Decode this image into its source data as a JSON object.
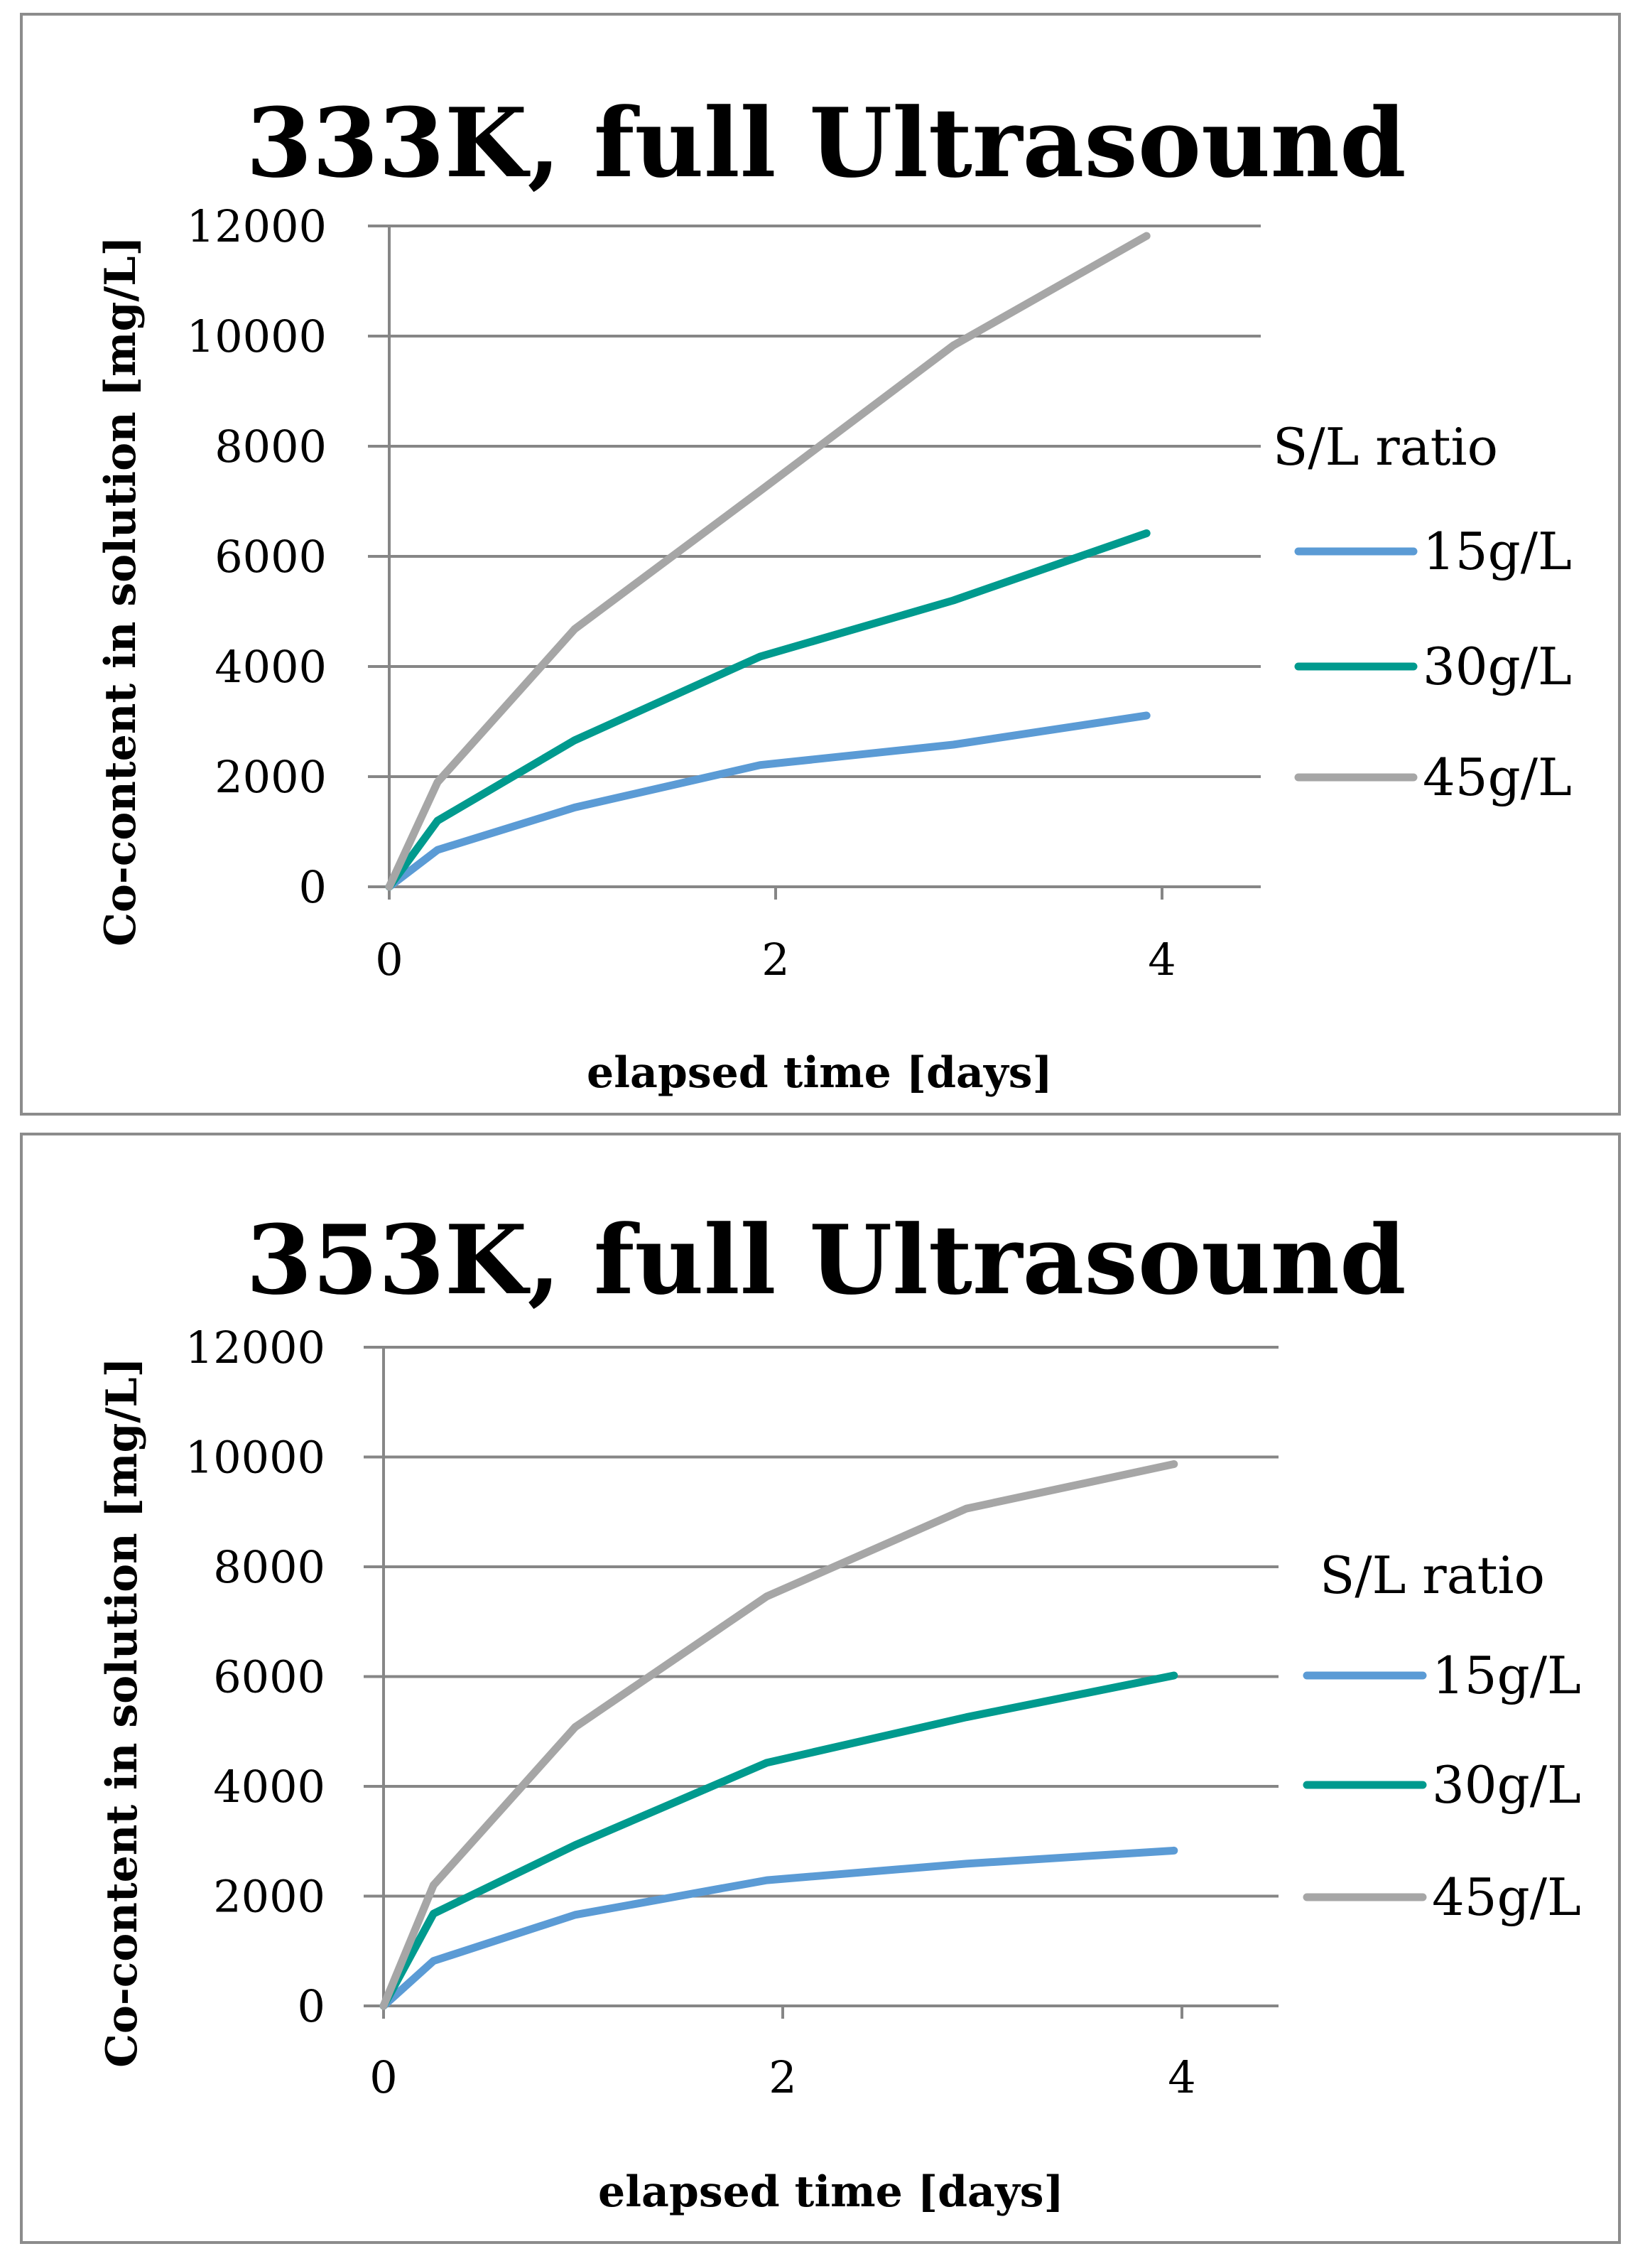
{
  "chart_data": [
    {
      "type": "line",
      "title": "333K, full Ultrasound",
      "xlabel": "elapsed time [days]",
      "ylabel": "Co-content in solution [mg/L]",
      "xlim": [
        0,
        4.5
      ],
      "ylim": [
        0,
        12000
      ],
      "x_ticks": [
        "0",
        "2",
        "4"
      ],
      "y_ticks": [
        "0",
        "2000",
        "4000",
        "6000",
        "8000",
        "10000",
        "12000"
      ],
      "legend_title": "S/L ratio",
      "legend_position": "right",
      "series": [
        {
          "name": "15g/L",
          "color": "#5b9bd5",
          "x": [
            0,
            0.25,
            0.96,
            1.92,
            2.92,
            3.92
          ],
          "y": [
            0,
            670,
            1440,
            2210,
            2580,
            3110
          ]
        },
        {
          "name": "30g/L",
          "color": "#009a8e",
          "x": [
            0,
            0.25,
            0.96,
            1.92,
            2.92,
            3.92
          ],
          "y": [
            0,
            1200,
            2660,
            4180,
            5200,
            6420
          ]
        },
        {
          "name": "45g/L",
          "color": "#a6a6a6",
          "x": [
            0,
            0.25,
            0.96,
            1.92,
            2.92,
            3.92
          ],
          "y": [
            0,
            1900,
            4680,
            7190,
            9830,
            11820
          ]
        }
      ]
    },
    {
      "type": "line",
      "title": "353K, full Ultrasound",
      "xlabel": "elapsed time [days]",
      "ylabel": "Co-content in solution [mg/L]",
      "xlim": [
        0,
        4.5
      ],
      "ylim": [
        0,
        12000
      ],
      "x_ticks": [
        "0",
        "2",
        "4"
      ],
      "y_ticks": [
        "0",
        "2000",
        "4000",
        "6000",
        "8000",
        "10000",
        "12000"
      ],
      "legend_title": "S/L ratio",
      "legend_position": "right",
      "series": [
        {
          "name": "15g/L",
          "color": "#5b9bd5",
          "x": [
            0,
            0.25,
            0.96,
            1.92,
            2.92,
            3.96
          ],
          "y": [
            0,
            820,
            1660,
            2290,
            2590,
            2830
          ]
        },
        {
          "name": "30g/L",
          "color": "#009a8e",
          "x": [
            0,
            0.25,
            0.96,
            1.92,
            2.92,
            3.96
          ],
          "y": [
            0,
            1680,
            2930,
            4430,
            5260,
            6020
          ]
        },
        {
          "name": "45g/L",
          "color": "#a6a6a6",
          "x": [
            0,
            0.25,
            0.96,
            1.92,
            2.92,
            3.96
          ],
          "y": [
            0,
            2200,
            5080,
            7460,
            9060,
            9870
          ]
        }
      ]
    }
  ]
}
